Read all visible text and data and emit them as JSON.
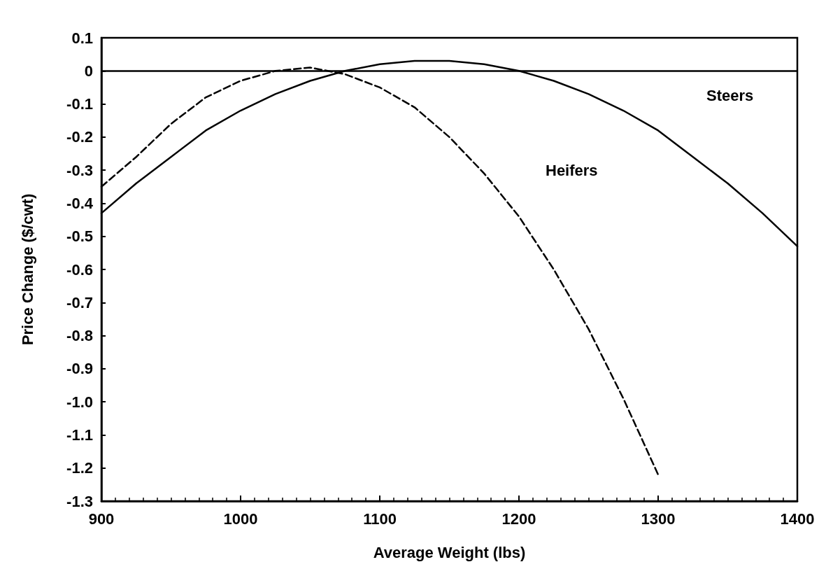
{
  "chart_data": {
    "type": "line",
    "xlabel": "Average Weight (lbs)",
    "ylabel": "Price Change ($/cwt)",
    "xlim": [
      900,
      1400
    ],
    "xticks": [
      900,
      1000,
      1100,
      1200,
      1300,
      1400
    ],
    "ylim": [
      -1.3,
      0.1
    ],
    "yticks": [
      0.1,
      0,
      -0.1,
      -0.2,
      -0.3,
      -0.4,
      -0.5,
      -0.6,
      -0.7,
      -0.8,
      -0.9,
      {
        "value": -1,
        "label": "-1.0"
      },
      -1.1,
      -1.2,
      -1.3
    ],
    "grid": false,
    "marker": "none",
    "ref_lines": [
      {
        "axis": "y",
        "value": 0,
        "color": "#000000",
        "line_style": "solid"
      }
    ],
    "series": [
      {
        "color": "#000000",
        "line_style": "solid",
        "x": [
          900,
          925,
          950,
          975,
          1000,
          1025,
          1050,
          1075,
          1100,
          1125,
          1150,
          1175,
          1200,
          1225,
          1250,
          1275,
          1300,
          1325,
          1350,
          1375,
          1400
        ],
        "values": [
          -0.43,
          -0.34,
          -0.26,
          -0.18,
          -0.12,
          -0.07,
          -0.03,
          0,
          0.02,
          0.03,
          0.03,
          0.02,
          0,
          -0.03,
          -0.07,
          -0.12,
          -0.18,
          -0.26,
          -0.34,
          -0.43,
          -0.53
        ]
      },
      {
        "color": "#000000",
        "line_style": "dashed",
        "x": [
          900,
          925,
          950,
          975,
          1000,
          1025,
          1050,
          1075,
          1100,
          1125,
          1150,
          1175,
          1200,
          1225,
          1250,
          1275,
          1300
        ],
        "values": [
          -0.35,
          -0.26,
          -0.16,
          -0.08,
          -0.03,
          0,
          0.01,
          -0.01,
          -0.05,
          -0.11,
          -0.2,
          -0.31,
          -0.44,
          -0.6,
          -0.78,
          -0.99,
          -1.22
        ]
      }
    ],
    "annotations": [
      "Steers",
      "Heifers"
    ]
  }
}
